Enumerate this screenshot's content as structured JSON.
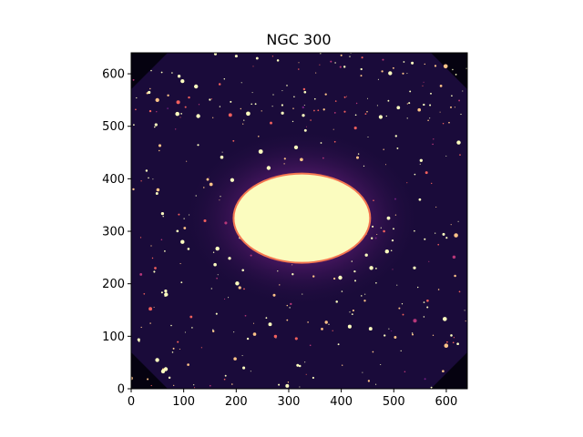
{
  "chart_data": {
    "type": "heatmap",
    "title": "NGC 300",
    "xlabel": "",
    "ylabel": "",
    "xlim": [
      0,
      640
    ],
    "ylim": [
      0,
      640
    ],
    "xticks": [
      0,
      100,
      200,
      300,
      400,
      500,
      600
    ],
    "yticks": [
      0,
      100,
      200,
      300,
      400,
      500,
      600
    ],
    "colormap": "magma",
    "grid": false,
    "galaxy_core": {
      "center": [
        325,
        325
      ],
      "semi_axis_x": 130,
      "semi_axis_y": 85
    },
    "colors": {
      "background": "#1a0b3a",
      "core": "#fbfcbf",
      "halo": "#7a2a7f",
      "star": "#fcfdbf"
    }
  }
}
